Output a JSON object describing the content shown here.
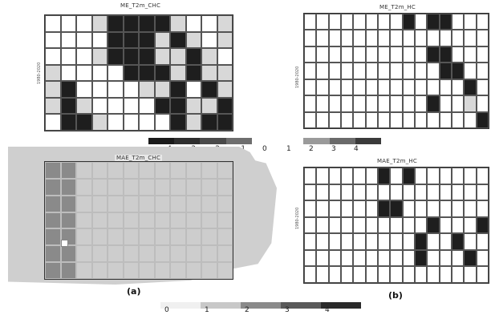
{
  "panels": {
    "top_left": {
      "title": "ME_T2m_CHC",
      "ylabel": "1980-2020"
    },
    "top_right": {
      "title": "ME_T2m_HC",
      "ylabel": "1980-2020"
    },
    "bottom_left": {
      "title": "MAE_T2m_CHC",
      "ylabel": "1980-2020",
      "label": "(a)"
    },
    "bottom_right": {
      "title": "MAE_T2m_HC",
      "ylabel": "1980-2020",
      "label": "(b)"
    }
  },
  "colorbar_top": {
    "labels": [
      "-4",
      "-3",
      "-2",
      "-1",
      "0",
      "1",
      "2",
      "3",
      "4"
    ]
  },
  "colorbar_bottom": {
    "labels": [
      "0",
      "1",
      "2",
      "3",
      "4"
    ]
  },
  "colors": {
    "dark": "#141414",
    "mid": "#6a6a6a",
    "light": "#ffffff",
    "map_gray": "#cfcfcf"
  },
  "grids": {
    "top_left": [
      [
        0,
        0,
        0,
        1,
        2,
        2,
        2,
        2,
        1,
        0,
        0,
        1
      ],
      [
        0,
        0,
        0,
        0,
        2,
        2,
        2,
        1,
        2,
        1,
        0,
        1
      ],
      [
        0,
        0,
        0,
        1,
        2,
        2,
        2,
        1,
        1,
        2,
        1,
        0
      ],
      [
        1,
        0,
        0,
        0,
        0,
        2,
        2,
        2,
        1,
        2,
        1,
        1
      ],
      [
        1,
        2,
        0,
        0,
        0,
        0,
        1,
        1,
        2,
        0,
        2,
        1
      ],
      [
        1,
        2,
        1,
        0,
        0,
        0,
        0,
        2,
        2,
        1,
        1,
        2
      ],
      [
        0,
        2,
        2,
        1,
        0,
        0,
        0,
        0,
        2,
        1,
        2,
        2
      ]
    ],
    "top_right": [
      [
        0,
        0,
        0,
        0,
        0,
        0,
        0,
        0,
        2,
        0,
        2,
        2,
        0,
        0,
        0
      ],
      [
        0,
        0,
        0,
        0,
        0,
        0,
        0,
        0,
        0,
        0,
        0,
        0,
        0,
        0,
        0
      ],
      [
        0,
        0,
        0,
        0,
        0,
        0,
        0,
        0,
        0,
        0,
        2,
        2,
        0,
        0,
        0
      ],
      [
        0,
        0,
        0,
        0,
        0,
        0,
        0,
        0,
        0,
        0,
        0,
        2,
        2,
        0,
        0
      ],
      [
        0,
        0,
        0,
        0,
        0,
        0,
        0,
        0,
        0,
        0,
        0,
        0,
        0,
        2,
        0
      ],
      [
        0,
        0,
        0,
        0,
        0,
        0,
        0,
        0,
        0,
        0,
        2,
        0,
        0,
        1,
        0
      ],
      [
        0,
        0,
        0,
        0,
        0,
        0,
        0,
        0,
        0,
        0,
        0,
        0,
        0,
        0,
        2
      ]
    ],
    "bottom_left": [
      [
        3,
        3,
        1,
        1,
        1,
        1,
        1,
        1,
        1,
        1,
        1,
        1
      ],
      [
        3,
        3,
        1,
        1,
        1,
        1,
        1,
        1,
        1,
        1,
        1,
        1
      ],
      [
        3,
        3,
        1,
        1,
        1,
        1,
        1,
        1,
        1,
        1,
        1,
        1
      ],
      [
        3,
        3,
        1,
        1,
        1,
        1,
        1,
        1,
        1,
        1,
        1,
        1
      ],
      [
        3,
        3,
        1,
        1,
        1,
        1,
        1,
        1,
        1,
        1,
        1,
        1
      ],
      [
        3,
        3,
        1,
        1,
        1,
        1,
        1,
        1,
        1,
        1,
        1,
        1
      ],
      [
        3,
        3,
        1,
        1,
        1,
        1,
        1,
        1,
        1,
        1,
        1,
        1
      ]
    ],
    "bottom_right": [
      [
        0,
        0,
        0,
        0,
        0,
        0,
        2,
        0,
        2,
        0,
        0,
        0,
        0,
        0,
        0
      ],
      [
        0,
        0,
        0,
        0,
        0,
        0,
        0,
        0,
        0,
        0,
        0,
        0,
        0,
        0,
        0
      ],
      [
        0,
        0,
        0,
        0,
        0,
        0,
        2,
        2,
        0,
        0,
        0,
        0,
        0,
        0,
        0
      ],
      [
        0,
        0,
        0,
        0,
        0,
        0,
        0,
        0,
        0,
        0,
        2,
        0,
        0,
        0,
        2
      ],
      [
        0,
        0,
        0,
        0,
        0,
        0,
        0,
        0,
        0,
        2,
        0,
        0,
        2,
        0,
        0
      ],
      [
        0,
        0,
        0,
        0,
        0,
        0,
        0,
        0,
        0,
        2,
        0,
        0,
        0,
        2,
        0
      ],
      [
        0,
        0,
        0,
        0,
        0,
        0,
        0,
        0,
        0,
        0,
        0,
        0,
        0,
        0,
        0
      ]
    ]
  }
}
